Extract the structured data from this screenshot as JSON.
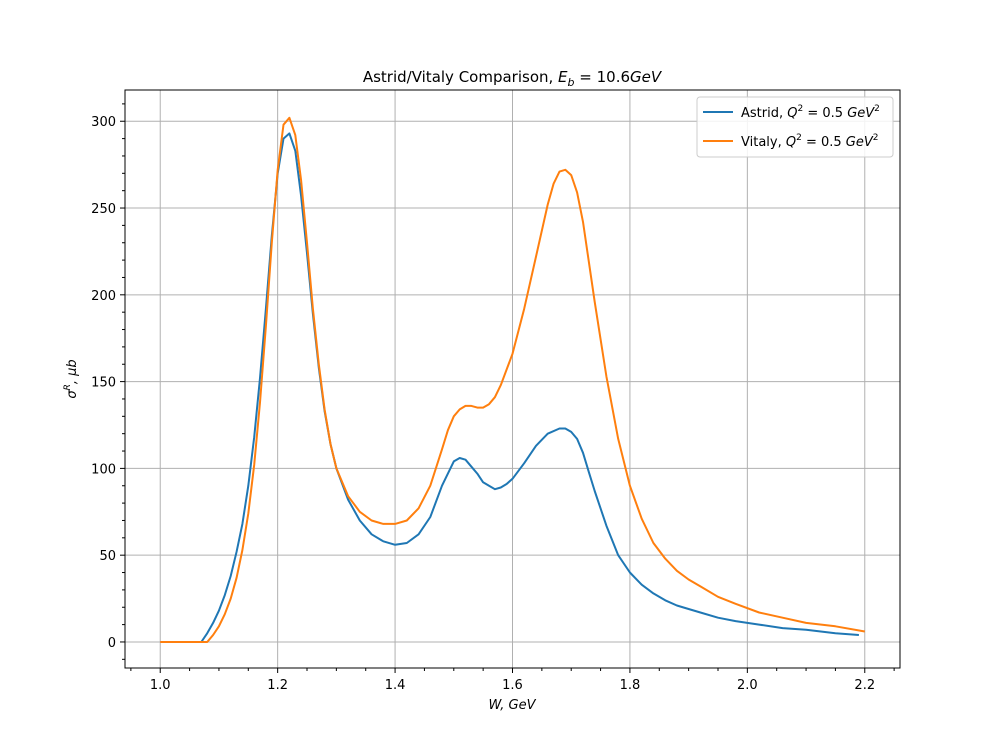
{
  "chart_data": {
    "type": "line",
    "title": {
      "main": "Astrid/Vitaly Comparison, ",
      "math_var": "E",
      "math_sub": "b",
      "math_rest": " = 10.6",
      "math_unit": "GeV"
    },
    "xlabel": "W, GeV",
    "ylabel": {
      "sigma": "σ",
      "sup": "R",
      "rest": ", μb"
    },
    "xlim": [
      0.94,
      2.26
    ],
    "ylim": [
      -15,
      318
    ],
    "xticks": [
      1.0,
      1.2,
      1.4,
      1.6,
      1.8,
      2.0,
      2.2
    ],
    "xtick_labels": [
      "1.0",
      "1.2",
      "1.4",
      "1.6",
      "1.8",
      "2.0",
      "2.2"
    ],
    "yticks": [
      0,
      50,
      100,
      150,
      200,
      250,
      300
    ],
    "ytick_labels": [
      "0",
      "50",
      "100",
      "150",
      "200",
      "250",
      "300"
    ],
    "grid": true,
    "legend_position": "top-right",
    "series": [
      {
        "name": "Astrid, Q² = 0.5 GeV²",
        "legend": {
          "prefix": "Astrid, ",
          "q": "Q",
          "qsup": "2",
          "mid": " = 0.5 ",
          "unit": "GeV",
          "usup": "2"
        },
        "color": "#1f77b4",
        "x": [
          1.07,
          1.08,
          1.09,
          1.1,
          1.11,
          1.12,
          1.13,
          1.14,
          1.15,
          1.16,
          1.17,
          1.18,
          1.19,
          1.2,
          1.21,
          1.22,
          1.23,
          1.24,
          1.25,
          1.26,
          1.27,
          1.28,
          1.29,
          1.3,
          1.32,
          1.34,
          1.36,
          1.38,
          1.4,
          1.42,
          1.44,
          1.46,
          1.48,
          1.5,
          1.51,
          1.52,
          1.53,
          1.54,
          1.55,
          1.56,
          1.57,
          1.58,
          1.59,
          1.6,
          1.62,
          1.64,
          1.66,
          1.68,
          1.69,
          1.7,
          1.71,
          1.72,
          1.73,
          1.74,
          1.76,
          1.78,
          1.8,
          1.82,
          1.84,
          1.86,
          1.88,
          1.9,
          1.92,
          1.95,
          1.98,
          2.02,
          2.06,
          2.1,
          2.15,
          2.19
        ],
        "y": [
          0,
          5,
          11,
          18,
          27,
          38,
          52,
          68,
          90,
          118,
          152,
          192,
          234,
          270,
          290,
          293,
          283,
          257,
          224,
          189,
          158,
          133,
          114,
          100,
          82,
          70,
          62,
          58,
          56,
          57,
          62,
          72,
          90,
          104,
          106,
          105,
          101,
          97,
          92,
          90,
          88,
          89,
          91,
          94,
          103,
          113,
          120,
          123,
          123,
          121,
          117,
          109,
          98,
          87,
          67,
          50,
          40,
          33,
          28,
          24,
          21,
          19,
          17,
          14,
          12,
          10,
          8,
          7,
          5,
          4
        ]
      },
      {
        "name": "Vitaly, Q² = 0.5 GeV²",
        "legend": {
          "prefix": "Vitaly, ",
          "q": "Q",
          "qsup": "2",
          "mid": " = 0.5 ",
          "unit": "GeV",
          "usup": "2"
        },
        "color": "#ff7f0e",
        "x": [
          1.0,
          1.03,
          1.06,
          1.08,
          1.09,
          1.1,
          1.11,
          1.12,
          1.13,
          1.14,
          1.15,
          1.16,
          1.17,
          1.18,
          1.19,
          1.2,
          1.21,
          1.22,
          1.23,
          1.24,
          1.25,
          1.26,
          1.27,
          1.28,
          1.29,
          1.3,
          1.32,
          1.34,
          1.36,
          1.38,
          1.4,
          1.42,
          1.44,
          1.46,
          1.48,
          1.49,
          1.5,
          1.51,
          1.52,
          1.53,
          1.54,
          1.55,
          1.56,
          1.57,
          1.58,
          1.6,
          1.62,
          1.64,
          1.66,
          1.67,
          1.68,
          1.69,
          1.7,
          1.71,
          1.72,
          1.74,
          1.76,
          1.78,
          1.8,
          1.82,
          1.84,
          1.86,
          1.88,
          1.9,
          1.92,
          1.95,
          1.98,
          2.02,
          2.06,
          2.1,
          2.15,
          2.2
        ],
        "y": [
          0,
          0,
          0,
          0,
          4,
          9,
          16,
          25,
          37,
          53,
          74,
          102,
          138,
          182,
          230,
          272,
          298,
          302,
          292,
          266,
          230,
          192,
          160,
          134,
          114,
          100,
          84,
          75,
          70,
          68,
          68,
          70,
          77,
          90,
          111,
          122,
          130,
          134,
          136,
          136,
          135,
          135,
          137,
          141,
          148,
          166,
          192,
          222,
          252,
          264,
          271,
          272,
          269,
          259,
          242,
          196,
          153,
          117,
          90,
          71,
          57,
          48,
          41,
          36,
          32,
          26,
          22,
          17,
          14,
          11,
          9,
          6
        ]
      }
    ]
  }
}
